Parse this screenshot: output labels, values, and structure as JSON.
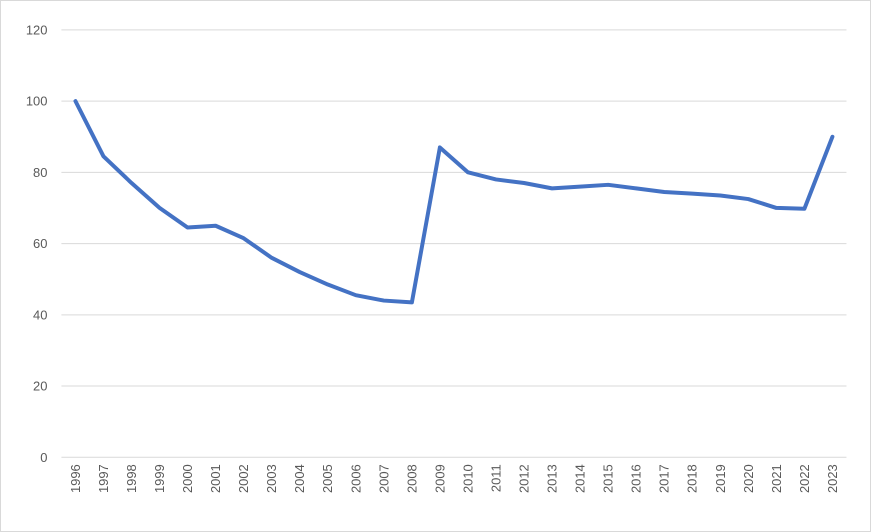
{
  "chart_data": {
    "type": "line",
    "title": "",
    "xlabel": "",
    "ylabel": "",
    "categories": [
      "1996",
      "1997",
      "1998",
      "1999",
      "2000",
      "2001",
      "2002",
      "2003",
      "2004",
      "2005",
      "2006",
      "2007",
      "2008",
      "2009",
      "2010",
      "2011",
      "2012",
      "2013",
      "2014",
      "2015",
      "2016",
      "2017",
      "2018",
      "2019",
      "2020",
      "2021",
      "2022",
      "2023"
    ],
    "values": [
      100,
      84.5,
      77,
      70,
      64.5,
      65,
      61.5,
      56,
      52,
      48.5,
      45.5,
      44,
      43.5,
      87,
      80,
      78,
      77,
      75.5,
      76,
      76.5,
      75.5,
      74.5,
      74,
      73.5,
      72.5,
      70,
      69.8,
      90
    ],
    "ylim": [
      0,
      120
    ],
    "yticks": [
      0,
      20,
      40,
      60,
      80,
      100,
      120
    ],
    "grid": "horizontal",
    "legend": "none",
    "x_label_rotation_degrees": -90,
    "colors": {
      "line": "#4472C4",
      "gridline": "#D9D9D9",
      "tick_label": "#595959",
      "border": "#D9D9D9",
      "background": "#FFFFFF"
    }
  }
}
